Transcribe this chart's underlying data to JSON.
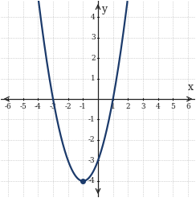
{
  "title": "",
  "xlabel": "x",
  "ylabel": "y",
  "xlim": [
    -6.5,
    6.5
  ],
  "ylim": [
    -4.8,
    4.8
  ],
  "xticks": [
    -6,
    -5,
    -4,
    -3,
    -2,
    -1,
    1,
    2,
    3,
    4,
    5,
    6
  ],
  "yticks": [
    -4,
    -3,
    -2,
    -1,
    1,
    2,
    3,
    4
  ],
  "curve_color": "#1b3a6b",
  "vertex_x": -1.0,
  "vertex_y": -4.0,
  "a": 1.0,
  "x_start": -6.5,
  "x_end": 5.5,
  "background_color": "#ffffff",
  "grid_color": "#b0b0b0",
  "axis_color": "#222222",
  "dot_color": "#1b3a6b",
  "dot_size": 4,
  "tick_fontsize": 6.5,
  "label_fontsize": 9
}
